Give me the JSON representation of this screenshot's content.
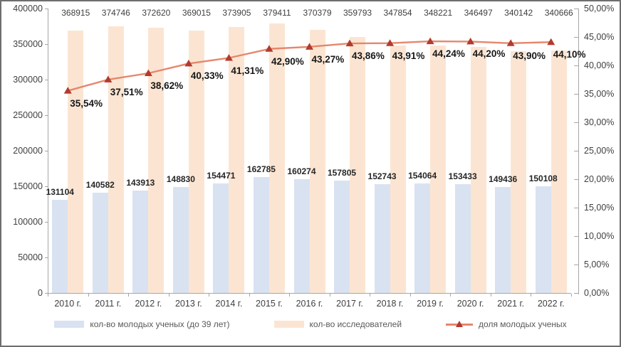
{
  "chart_data": {
    "type": "bar+line",
    "title": "",
    "categories": [
      "2010 г.",
      "2011 г.",
      "2012 г.",
      "2013 г.",
      "2014 г.",
      "2015 г.",
      "2016 г.",
      "2017 г.",
      "2018 г.",
      "2019 г.",
      "2020 г.",
      "2021 г.",
      "2022 г."
    ],
    "series": [
      {
        "name": "кол-во молодых ученых (до 39 лет)",
        "type": "bar",
        "axis": "left",
        "color": "#d9e2f1",
        "values": [
          131104,
          140582,
          143913,
          148830,
          154471,
          162785,
          160274,
          157805,
          152743,
          154064,
          153433,
          149436,
          150108
        ]
      },
      {
        "name": "кол-во исследователей",
        "type": "bar",
        "axis": "left",
        "color": "#fbe5d2",
        "values": [
          368915,
          374746,
          372620,
          369015,
          373905,
          379411,
          370379,
          359793,
          347854,
          348221,
          346497,
          340142,
          340666
        ]
      },
      {
        "name": "доля молодых ученых",
        "type": "line",
        "axis": "right",
        "color": "#e5876c",
        "marker_color": "#b23b2e",
        "values": [
          35.54,
          37.51,
          38.62,
          40.33,
          41.31,
          42.9,
          43.27,
          43.86,
          43.91,
          44.24,
          44.2,
          43.9,
          44.1
        ],
        "labels": [
          "35,54%",
          "37,51%",
          "38,62%",
          "40,33%",
          "41,31%",
          "42,90%",
          "43,27%",
          "43,86%",
          "43,91%",
          "44,24%",
          "44,20%",
          "43,90%",
          "44,10%"
        ]
      }
    ],
    "left_axis": {
      "min": 0,
      "max": 400000,
      "step": 50000,
      "tick_labels": [
        "0",
        "50000",
        "100000",
        "150000",
        "200000",
        "250000",
        "300000",
        "350000",
        "400000"
      ]
    },
    "right_axis": {
      "min": 0,
      "max": 50,
      "step": 5,
      "tick_labels": [
        "0,00%",
        "5,00%",
        "10,00%",
        "15,00%",
        "20,00%",
        "25,00%",
        "30,00%",
        "35,00%",
        "40,00%",
        "45,00%",
        "50,00%"
      ]
    },
    "grid": false,
    "legend_position": "bottom"
  }
}
